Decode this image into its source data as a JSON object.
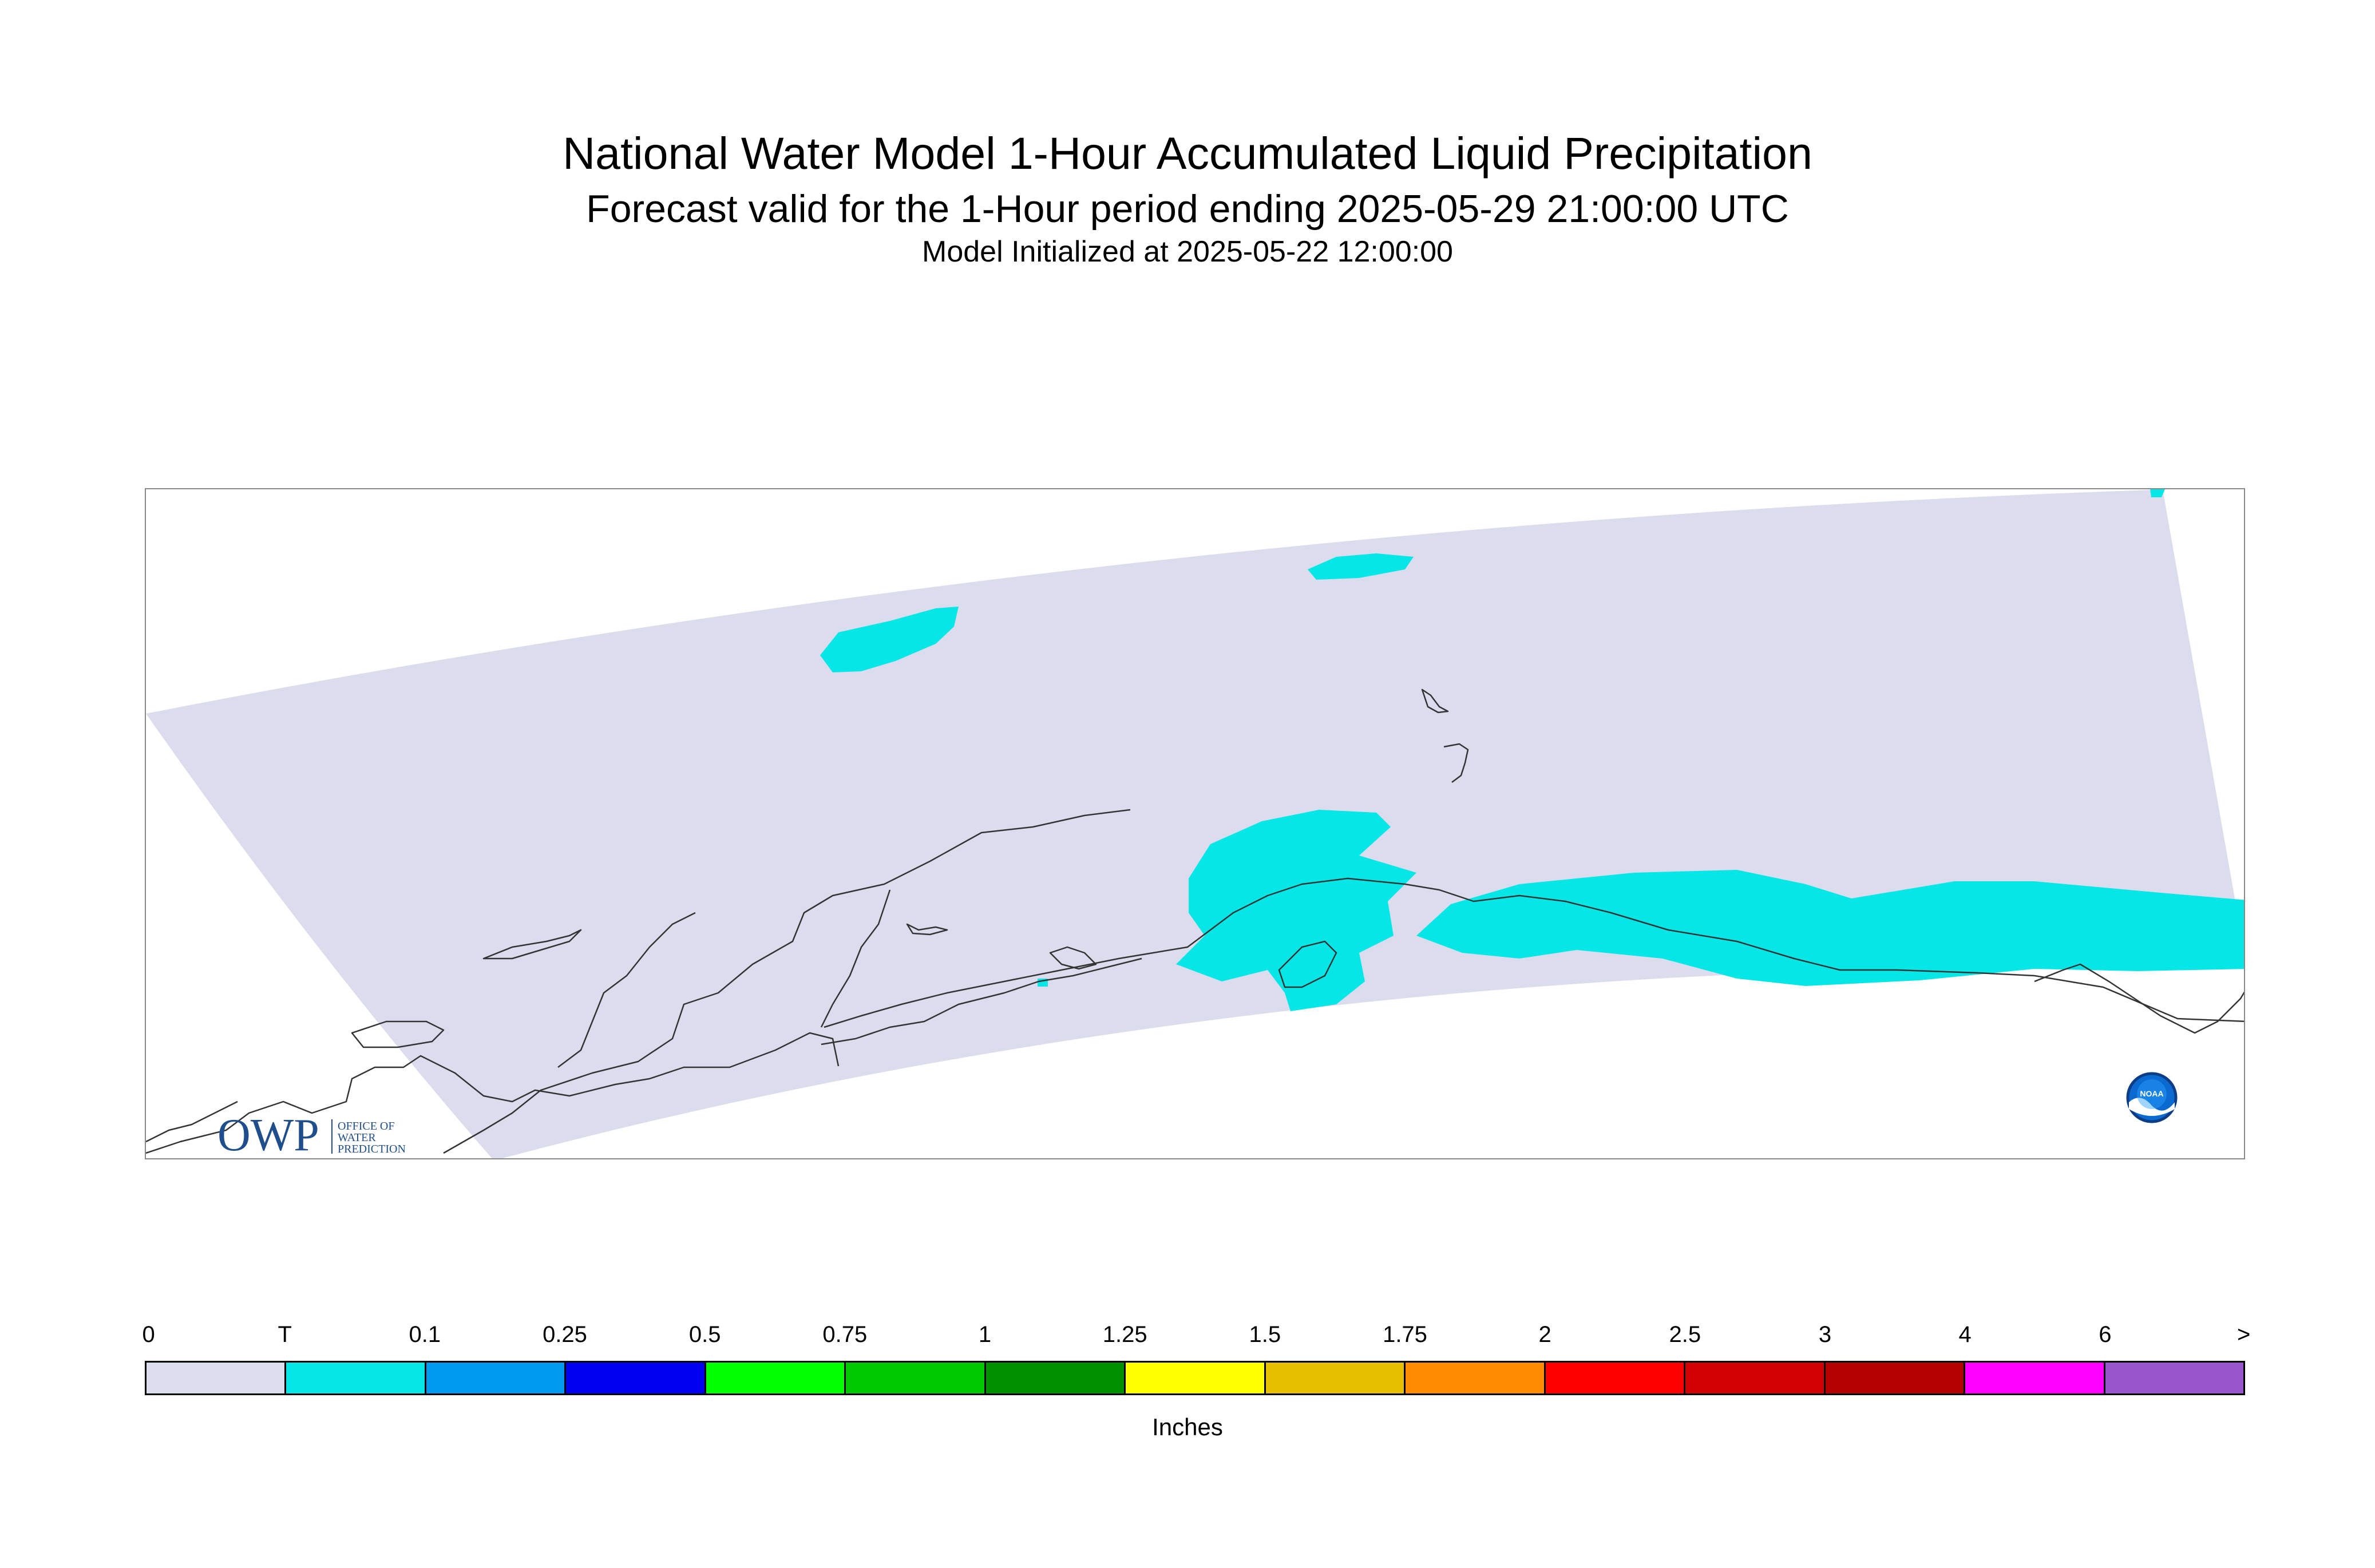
{
  "title": {
    "main": "National Water Model 1-Hour Accumulated Liquid Precipitation",
    "forecast": "Forecast valid for the 1-Hour period ending 2025-05-29 21:00:00 UTC",
    "init": "Model Initialized at 2025-05-22 12:00:00"
  },
  "logos": {
    "owp_letters": "OWP",
    "owp_line1": "OFFICE OF",
    "owp_line2": "WATER",
    "owp_line3": "PREDICTION",
    "noaa": "NOAA"
  },
  "map": {
    "domain_color": "#dcdcef",
    "coastline_color": "#333333",
    "trace_color": "#05e6e6"
  },
  "legend": {
    "units": "Inches",
    "tick_labels": [
      "0",
      "T",
      "0.1",
      "0.25",
      "0.5",
      "0.75",
      "1",
      "1.25",
      "1.5",
      "1.75",
      "2",
      "2.5",
      "3",
      "4",
      "6",
      ">"
    ],
    "colors": [
      "#dcdcef",
      "#05e6e6",
      "#0099f0",
      "#0000f0",
      "#00ff00",
      "#00c800",
      "#009000",
      "#ffff00",
      "#e6c000",
      "#ff8c00",
      "#ff0000",
      "#d20000",
      "#b40000",
      "#ff00ff",
      "#9955cc"
    ]
  }
}
